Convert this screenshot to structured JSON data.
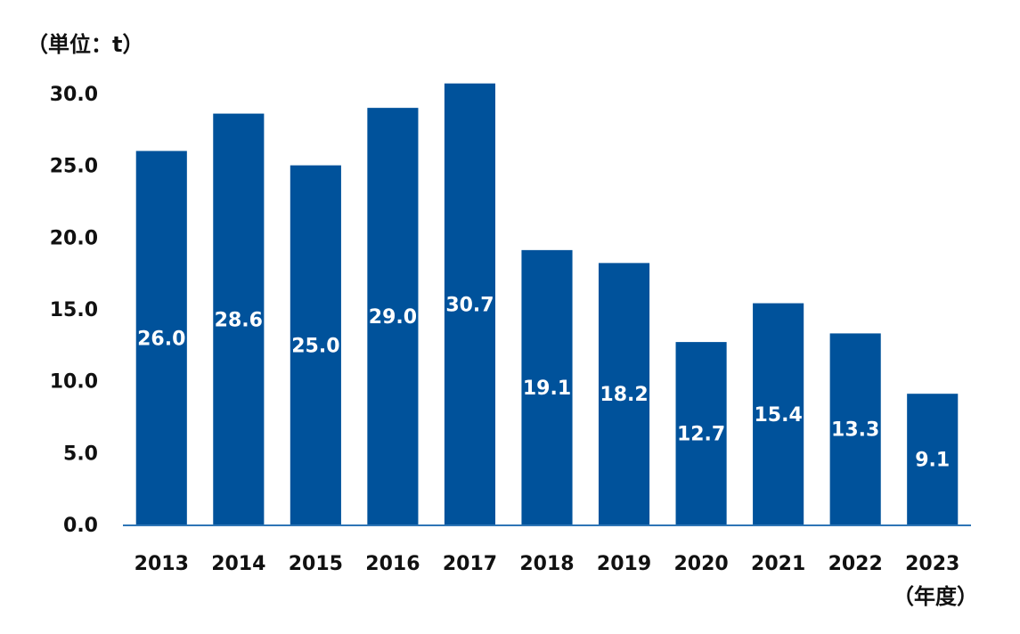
{
  "chart_data": {
    "type": "bar",
    "categories": [
      "2013",
      "2014",
      "2015",
      "2016",
      "2017",
      "2018",
      "2019",
      "2020",
      "2021",
      "2022",
      "2023"
    ],
    "values": [
      26.0,
      28.6,
      25.0,
      29.0,
      30.7,
      19.1,
      18.2,
      12.7,
      15.4,
      13.3,
      9.1
    ],
    "data_labels": [
      "26.0",
      "28.6",
      "25.0",
      "29.0",
      "30.7",
      "19.1",
      "18.2",
      "12.7",
      "15.4",
      "13.3",
      "9.1"
    ],
    "ylabel": "（単位：t）",
    "xlabel": "（年度）",
    "yticks": [
      "0.0",
      "5.0",
      "10.0",
      "15.0",
      "20.0",
      "25.0",
      "30.0"
    ],
    "ylim": [
      0,
      30
    ],
    "grid": false,
    "bar_color": "#00529B",
    "axis_color": "#2E75B6"
  }
}
